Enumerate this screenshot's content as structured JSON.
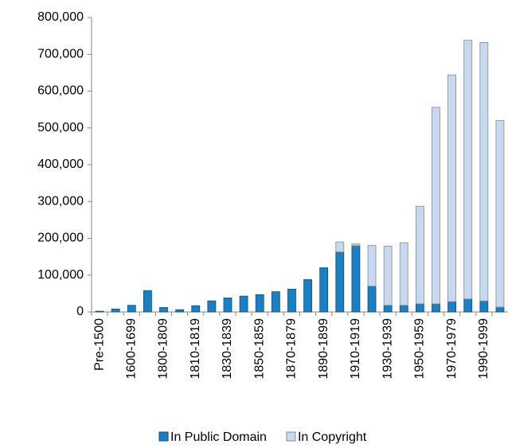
{
  "chart_data": {
    "type": "stacked_bar",
    "categories": [
      "Pre-1500",
      null,
      "1600-1699",
      null,
      "1800-1809",
      null,
      "1810-1819",
      null,
      "1830-1839",
      null,
      "1850-1859",
      null,
      "1870-1879",
      null,
      "1890-1899",
      null,
      "1910-1919",
      null,
      "1930-1939",
      null,
      "1950-1959",
      null,
      "1970-1979",
      null,
      "1990-1999",
      null
    ],
    "series": [
      {
        "name": "In Public Domain",
        "color": "#1b7fc4",
        "edge": "#0b4f80",
        "values": [
          2000,
          8000,
          18000,
          58000,
          12000,
          6000,
          17000,
          30000,
          38000,
          43000,
          47000,
          55000,
          62000,
          88000,
          120000,
          163000,
          180000,
          70000,
          18000,
          18000,
          22000,
          22000,
          28000,
          35000,
          30000,
          13000
        ]
      },
      {
        "name": "In Copyright",
        "color": "#c6d9f1",
        "edge": "#8a8a8a",
        "values": [
          0,
          0,
          0,
          0,
          0,
          0,
          0,
          0,
          0,
          0,
          0,
          0,
          0,
          0,
          0,
          27000,
          5000,
          111000,
          161000,
          170000,
          265000,
          534000,
          616000,
          703000,
          702000,
          507000
        ]
      }
    ],
    "ylim": [
      0,
      800000
    ],
    "yticks": [
      0,
      {
        "value": 100000,
        "label": "100,000"
      },
      {
        "value": 200000,
        "label": "200,000"
      },
      {
        "value": 300000,
        "label": "300,000"
      },
      {
        "value": 400000,
        "label": "400,000"
      },
      {
        "value": 500000,
        "label": "500,000"
      },
      {
        "value": 600000,
        "label": "600,000"
      },
      {
        "value": 700000,
        "label": "700,000"
      },
      {
        "value": 800000,
        "label": "800,000"
      }
    ],
    "legend": "bottom"
  }
}
